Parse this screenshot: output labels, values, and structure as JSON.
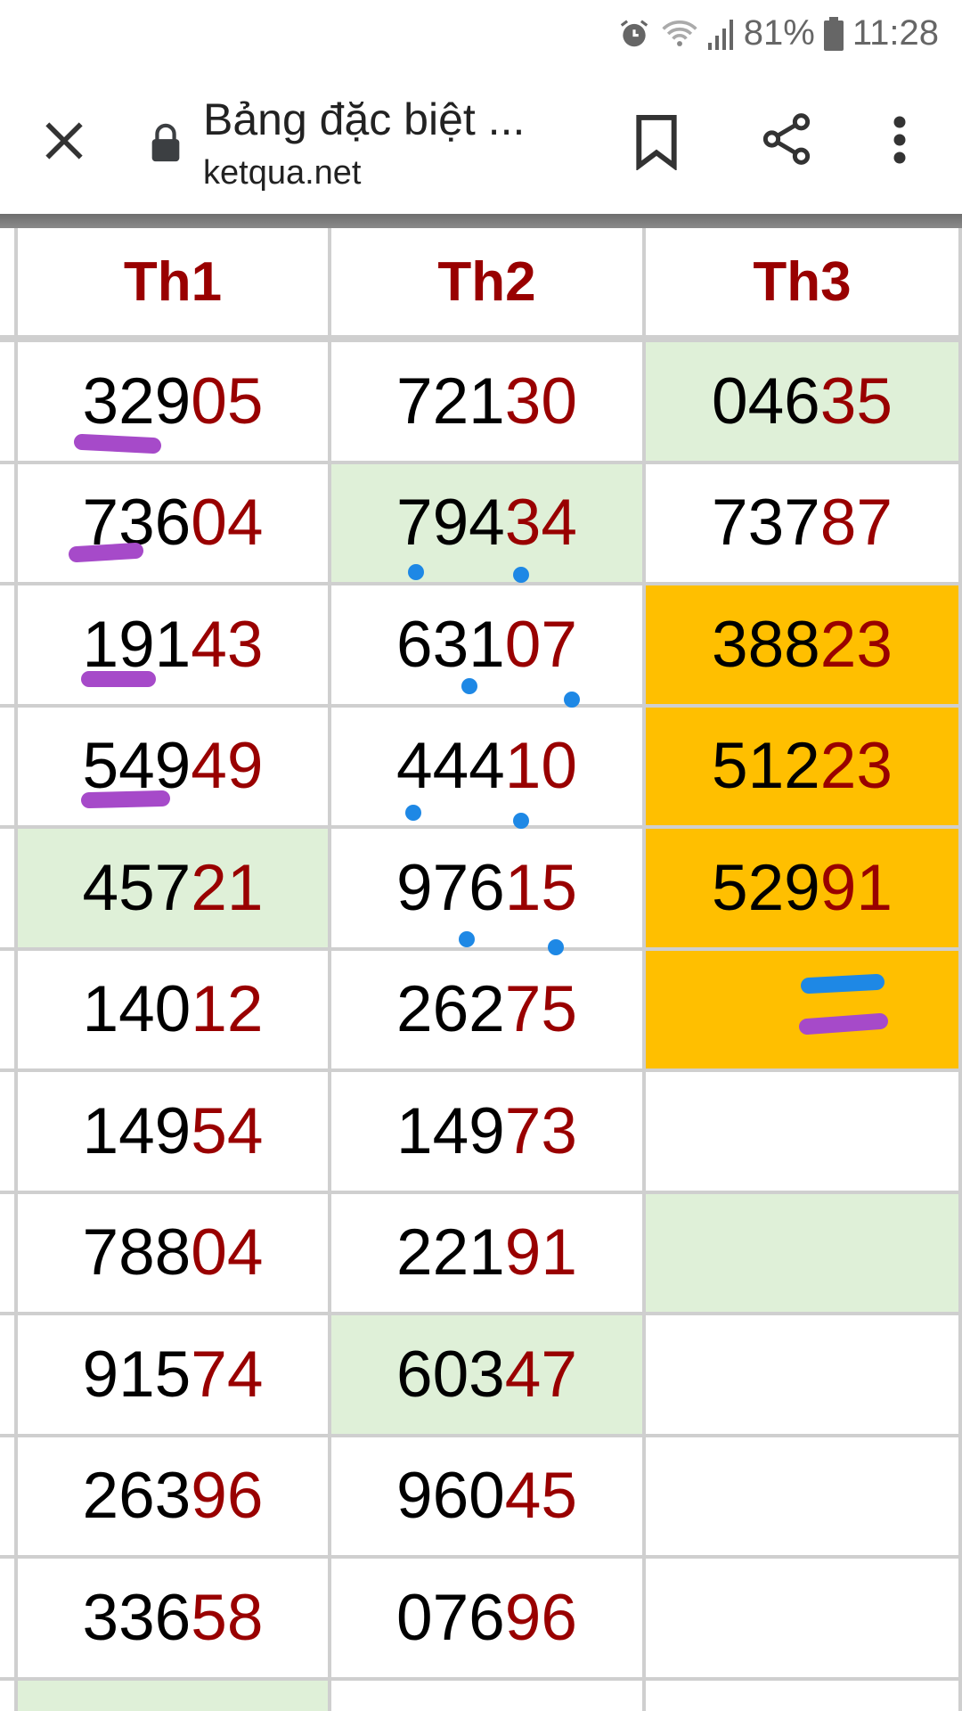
{
  "status_bar": {
    "battery": "81%",
    "time": "11:28",
    "icons": [
      "alarm-icon",
      "wifi-icon",
      "signal-icon",
      "battery-icon"
    ]
  },
  "browser": {
    "title": "Bảng đặc biệt ...",
    "url": "ketqua.net",
    "icons": [
      "close-icon",
      "lock-icon",
      "bookmark-icon",
      "share-icon",
      "more-vert-icon"
    ]
  },
  "colors": {
    "header_text": "#990000",
    "tail_digits": "#990000",
    "green_highlight": "#dff0d8",
    "orange_highlight": "#ffbf00",
    "annotation_purple": "#a64ac9",
    "annotation_blue": "#1e88e5"
  },
  "table": {
    "headers": [
      "Th1",
      "Th2",
      "Th3"
    ],
    "rows": [
      [
        {
          "head": "329",
          "tail": "05",
          "bg": ""
        },
        {
          "head": "721",
          "tail": "30",
          "bg": ""
        },
        {
          "head": "046",
          "tail": "35",
          "bg": "green"
        }
      ],
      [
        {
          "head": "736",
          "tail": "04",
          "bg": ""
        },
        {
          "head": "794",
          "tail": "34",
          "bg": "green"
        },
        {
          "head": "737",
          "tail": "87",
          "bg": ""
        }
      ],
      [
        {
          "head": "191",
          "tail": "43",
          "bg": ""
        },
        {
          "head": "631",
          "tail": "07",
          "bg": ""
        },
        {
          "head": "388",
          "tail": "23",
          "bg": "orange"
        }
      ],
      [
        {
          "head": "549",
          "tail": "49",
          "bg": ""
        },
        {
          "head": "444",
          "tail": "10",
          "bg": ""
        },
        {
          "head": "512",
          "tail": "23",
          "bg": "orange"
        }
      ],
      [
        {
          "head": "457",
          "tail": "21",
          "bg": "green"
        },
        {
          "head": "976",
          "tail": "15",
          "bg": ""
        },
        {
          "head": "529",
          "tail": "91",
          "bg": "orange"
        }
      ],
      [
        {
          "head": "140",
          "tail": "12",
          "bg": ""
        },
        {
          "head": "262",
          "tail": "75",
          "bg": ""
        },
        {
          "head": "",
          "tail": "",
          "bg": "orange"
        }
      ],
      [
        {
          "head": "149",
          "tail": "54",
          "bg": ""
        },
        {
          "head": "149",
          "tail": "73",
          "bg": ""
        },
        {
          "head": "",
          "tail": "",
          "bg": ""
        }
      ],
      [
        {
          "head": "788",
          "tail": "04",
          "bg": ""
        },
        {
          "head": "221",
          "tail": "91",
          "bg": ""
        },
        {
          "head": "",
          "tail": "",
          "bg": "green"
        }
      ],
      [
        {
          "head": "915",
          "tail": "74",
          "bg": ""
        },
        {
          "head": "603",
          "tail": "47",
          "bg": "green"
        },
        {
          "head": "",
          "tail": "",
          "bg": ""
        }
      ],
      [
        {
          "head": "263",
          "tail": "96",
          "bg": ""
        },
        {
          "head": "960",
          "tail": "45",
          "bg": ""
        },
        {
          "head": "",
          "tail": "",
          "bg": ""
        }
      ],
      [
        {
          "head": "336",
          "tail": "58",
          "bg": ""
        },
        {
          "head": "076",
          "tail": "96",
          "bg": ""
        },
        {
          "head": "",
          "tail": "",
          "bg": ""
        }
      ],
      [
        {
          "head": "",
          "tail": "",
          "bg": "green"
        },
        {
          "head": "",
          "tail": "",
          "bg": ""
        },
        {
          "head": "",
          "tail": "",
          "bg": ""
        }
      ]
    ]
  }
}
